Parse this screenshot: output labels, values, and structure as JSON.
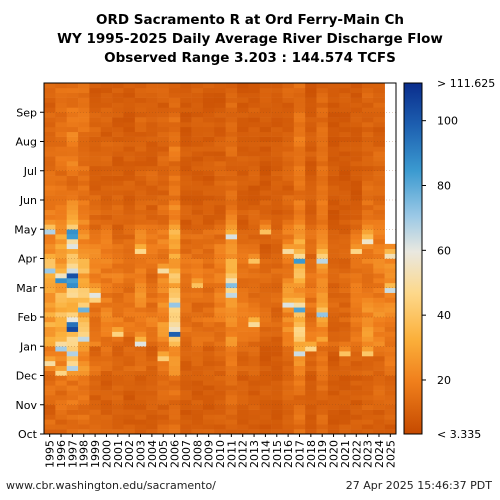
{
  "chart_data": {
    "type": "heatmap",
    "title_lines": [
      "ORD Sacramento R at Ord Ferry-Main Ch",
      "WY 1995-2025 Daily Average River Discharge Flow",
      "Observed Range 3.203 : 144.574 TCFS"
    ],
    "x_categories": [
      "1995",
      "1996",
      "1997",
      "1998",
      "1999",
      "2000",
      "2001",
      "2002",
      "2003",
      "2004",
      "2005",
      "2006",
      "2007",
      "2008",
      "2009",
      "2010",
      "2011",
      "2012",
      "2013",
      "2014",
      "2015",
      "2016",
      "2017",
      "2018",
      "2019",
      "2020",
      "2021",
      "2022",
      "2023",
      "2024",
      "2025"
    ],
    "y_months": [
      "Oct",
      "Nov",
      "Dec",
      "Jan",
      "Feb",
      "Mar",
      "Apr",
      "May",
      "Jun",
      "Jul",
      "Aug",
      "Sep"
    ],
    "colorbar": {
      "min": 3.335,
      "max": 111.625,
      "tick_values": [
        20,
        40,
        60,
        80,
        100
      ],
      "min_label": "< 3.335",
      "max_label": "> 111.625"
    },
    "units": "TCFS",
    "last_water_year_data_through": "Apr"
  },
  "footer": {
    "source": "www.cbr.washington.edu/sacramento/",
    "timestamp": "27 Apr 2025 15:46:37 PDT"
  }
}
